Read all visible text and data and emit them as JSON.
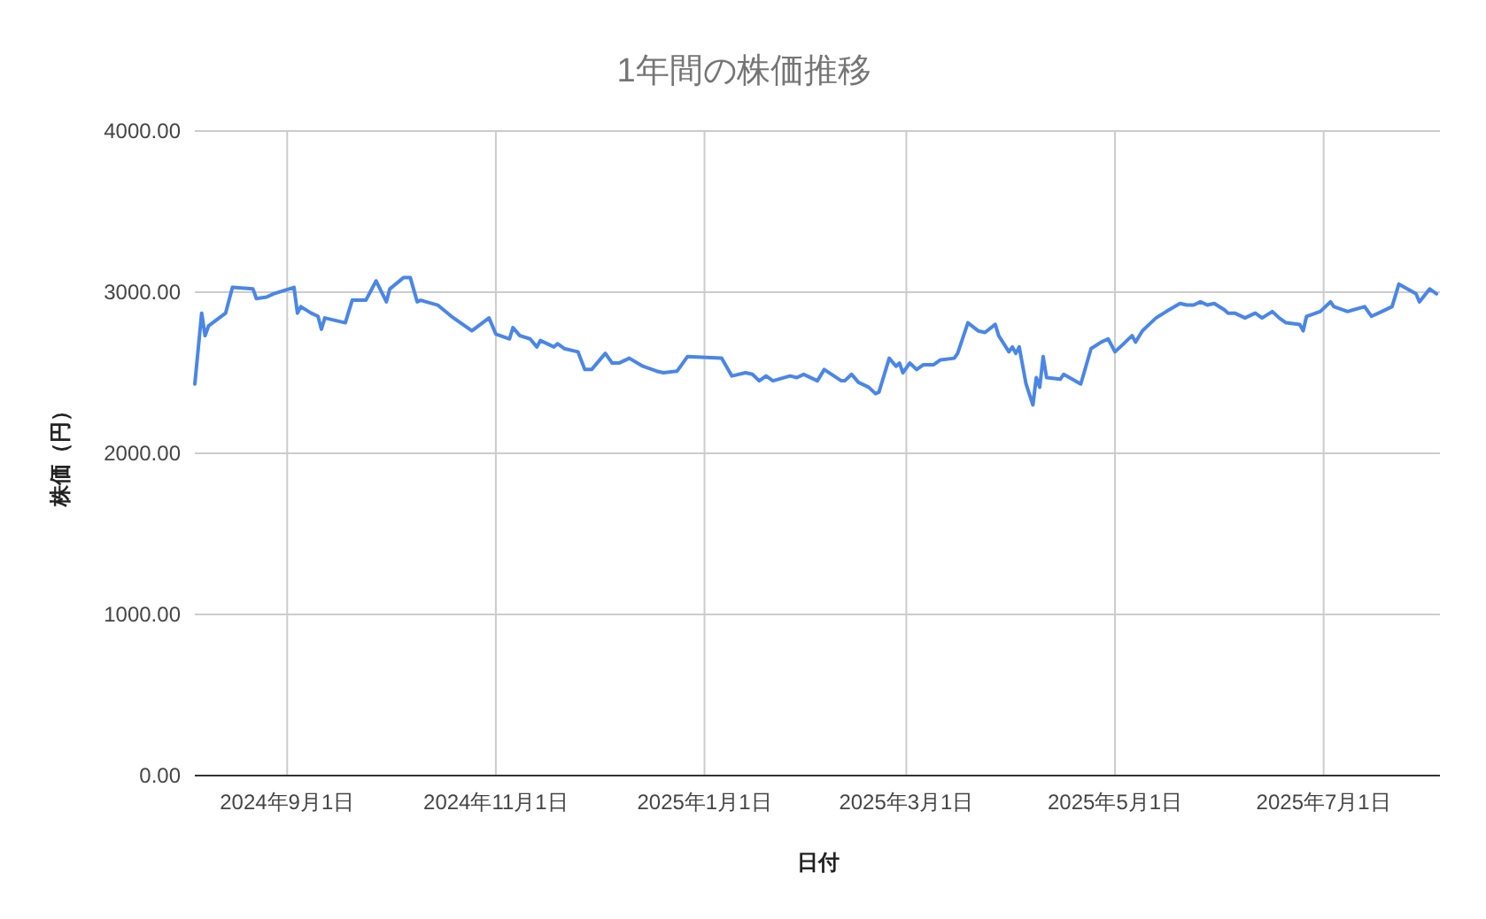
{
  "chart_data": {
    "type": "line",
    "title": "1年間の株価推移",
    "xlabel": "日付",
    "ylabel": "株価（円）",
    "grid": true,
    "marker": "none",
    "line_style": "solid",
    "xlim": [
      "2024-08-05",
      "2025-08-04"
    ],
    "xticks": [
      {
        "value": "2024-09-01",
        "label": "2024年9月1日"
      },
      {
        "value": "2024-11-01",
        "label": "2024年11月1日"
      },
      {
        "value": "2025-01-01",
        "label": "2025年1月1日"
      },
      {
        "value": "2025-03-01",
        "label": "2025年3月1日"
      },
      {
        "value": "2025-05-01",
        "label": "2025年5月1日"
      },
      {
        "value": "2025-07-01",
        "label": "2025年7月1日"
      }
    ],
    "ylim": [
      0,
      4000
    ],
    "yticks": [
      {
        "value": 0,
        "label": "0.00"
      },
      {
        "value": 1000,
        "label": "1000.00"
      },
      {
        "value": 2000,
        "label": "2000.00"
      },
      {
        "value": 3000,
        "label": "3000.00"
      },
      {
        "value": 4000,
        "label": "4000.00"
      }
    ],
    "x": [
      "2024-08-05",
      "2024-08-07",
      "2024-08-08",
      "2024-08-09",
      "2024-08-14",
      "2024-08-16",
      "2024-08-22",
      "2024-08-23",
      "2024-08-26",
      "2024-08-28",
      "2024-09-03",
      "2024-09-04",
      "2024-09-05",
      "2024-09-08",
      "2024-09-10",
      "2024-09-11",
      "2024-09-12",
      "2024-09-18",
      "2024-09-20",
      "2024-09-24",
      "2024-09-27",
      "2024-09-30",
      "2024-10-01",
      "2024-10-05",
      "2024-10-07",
      "2024-10-09",
      "2024-10-10",
      "2024-10-15",
      "2024-10-19",
      "2024-10-25",
      "2024-10-30",
      "2024-11-01",
      "2024-11-05",
      "2024-11-06",
      "2024-11-08",
      "2024-11-11",
      "2024-11-13",
      "2024-11-14",
      "2024-11-18",
      "2024-11-19",
      "2024-11-21",
      "2024-11-25",
      "2024-11-27",
      "2024-11-29",
      "2024-12-03",
      "2024-12-05",
      "2024-12-07",
      "2024-12-10",
      "2024-12-14",
      "2024-12-18",
      "2024-12-20",
      "2024-12-24",
      "2024-12-27",
      "2025-01-06",
      "2025-01-09",
      "2025-01-13",
      "2025-01-15",
      "2025-01-17",
      "2025-01-19",
      "2025-01-21",
      "2025-01-26",
      "2025-01-28",
      "2025-01-30",
      "2025-02-03",
      "2025-02-05",
      "2025-02-10",
      "2025-02-11",
      "2025-02-13",
      "2025-02-15",
      "2025-02-18",
      "2025-02-20",
      "2025-02-21",
      "2025-02-24",
      "2025-02-26",
      "2025-02-27",
      "2025-02-28",
      "2025-03-02",
      "2025-03-04",
      "2025-03-06",
      "2025-03-09",
      "2025-03-11",
      "2025-03-15",
      "2025-03-16",
      "2025-03-19",
      "2025-03-22",
      "2025-03-24",
      "2025-03-27",
      "2025-03-28",
      "2025-03-31",
      "2025-04-01",
      "2025-04-02",
      "2025-04-03",
      "2025-04-05",
      "2025-04-07",
      "2025-04-08",
      "2025-04-09",
      "2025-04-10",
      "2025-04-11",
      "2025-04-15",
      "2025-04-16",
      "2025-04-21",
      "2025-04-24",
      "2025-04-27",
      "2025-04-29",
      "2025-05-01",
      "2025-05-06",
      "2025-05-07",
      "2025-05-09",
      "2025-05-11",
      "2025-05-13",
      "2025-05-16",
      "2025-05-20",
      "2025-05-22",
      "2025-05-24",
      "2025-05-26",
      "2025-05-28",
      "2025-05-30",
      "2025-06-02",
      "2025-06-03",
      "2025-06-05",
      "2025-06-08",
      "2025-06-11",
      "2025-06-13",
      "2025-06-16",
      "2025-06-18",
      "2025-06-20",
      "2025-06-24",
      "2025-06-25",
      "2025-06-26",
      "2025-06-30",
      "2025-07-03",
      "2025-07-04",
      "2025-07-08",
      "2025-07-13",
      "2025-07-15",
      "2025-07-18",
      "2025-07-21",
      "2025-07-23",
      "2025-07-28",
      "2025-07-29",
      "2025-08-01",
      "2025-08-03"
    ],
    "series": [
      {
        "color": "#4a86e8",
        "values": [
          2430,
          2870,
          2730,
          2790,
          2870,
          3030,
          3020,
          2960,
          2970,
          2990,
          3030,
          2870,
          2910,
          2870,
          2850,
          2770,
          2840,
          2810,
          2950,
          2950,
          3070,
          2940,
          3020,
          3090,
          3090,
          2940,
          2950,
          2920,
          2850,
          2760,
          2840,
          2740,
          2710,
          2780,
          2730,
          2710,
          2660,
          2700,
          2660,
          2680,
          2650,
          2630,
          2520,
          2520,
          2620,
          2560,
          2560,
          2590,
          2540,
          2510,
          2500,
          2510,
          2600,
          2590,
          2480,
          2500,
          2490,
          2450,
          2480,
          2450,
          2480,
          2470,
          2490,
          2450,
          2520,
          2450,
          2450,
          2490,
          2440,
          2410,
          2370,
          2380,
          2590,
          2540,
          2560,
          2500,
          2560,
          2520,
          2550,
          2550,
          2580,
          2590,
          2620,
          2810,
          2760,
          2750,
          2800,
          2730,
          2630,
          2660,
          2620,
          2660,
          2430,
          2300,
          2470,
          2410,
          2600,
          2470,
          2460,
          2490,
          2430,
          2650,
          2690,
          2710,
          2630,
          2730,
          2690,
          2760,
          2800,
          2840,
          2880,
          2930,
          2920,
          2920,
          2940,
          2920,
          2930,
          2890,
          2870,
          2870,
          2840,
          2870,
          2840,
          2880,
          2840,
          2810,
          2800,
          2760,
          2850,
          2880,
          2940,
          2910,
          2880,
          2910,
          2850,
          2880,
          2910,
          3050,
          2990,
          2940,
          3020,
          2990
        ]
      }
    ]
  }
}
